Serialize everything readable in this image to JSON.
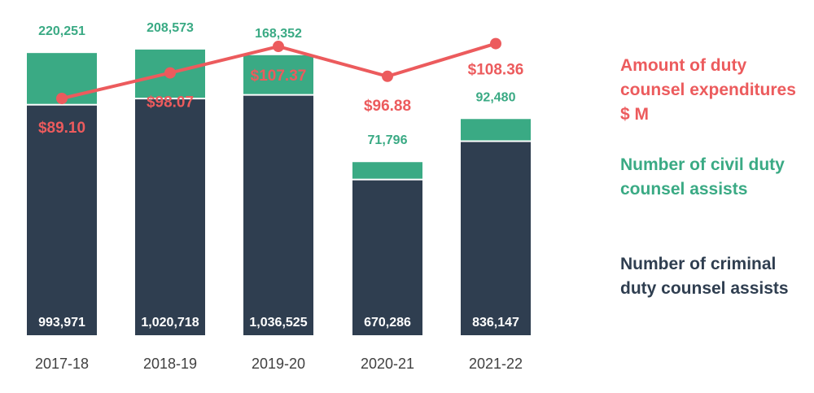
{
  "chart_data": {
    "type": "bar",
    "stacked": true,
    "categories": [
      "2017-18",
      "2018-19",
      "2019-20",
      "2020-21",
      "2021-22"
    ],
    "series": [
      {
        "name": "Number of criminal duty counsel assists",
        "kind": "bar",
        "color": "#2f3e50",
        "values": [
          993971,
          1020718,
          1036525,
          670286,
          836147
        ],
        "labels": [
          "993,971",
          "1,020,718",
          "1,036,525",
          "670,286",
          "836,147"
        ]
      },
      {
        "name": "Number of civil duty counsel assists",
        "kind": "bar",
        "color": "#3aaa84",
        "values": [
          220251,
          208573,
          168352,
          71796,
          92480
        ],
        "labels": [
          "220,251",
          "208,573",
          "168,352",
          "71,796",
          "92,480"
        ]
      },
      {
        "name": "Amount of duty counsel expenditures $ M",
        "kind": "line",
        "color": "#ec5b5d",
        "values": [
          89.1,
          98.07,
          107.37,
          96.88,
          108.36
        ],
        "labels": [
          "$89.10",
          "$98.07",
          "$107.37",
          "$96.88",
          "$108.36"
        ]
      }
    ],
    "legend_position": "right",
    "grid": false
  },
  "legend": {
    "expenditures": "Amount of duty counsel expenditures $ M",
    "civil": "Number of civil duty counsel assists",
    "criminal": "Number of criminal duty counsel assists"
  }
}
